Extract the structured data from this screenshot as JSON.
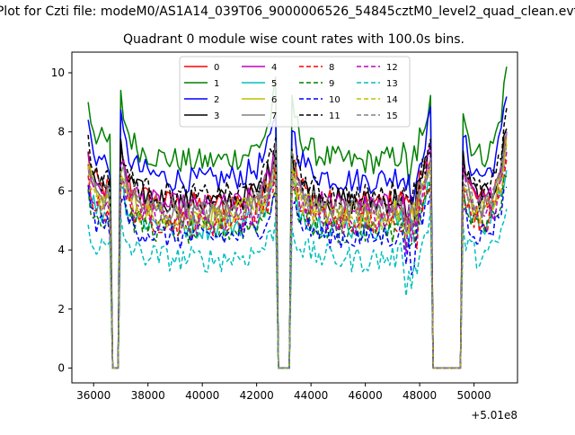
{
  "chart_data": {
    "type": "line",
    "suptitle": "Plot for Czti file: modeM0/AS1A14_039T06_9000006526_54845cztM0_level2_quad_clean.evt",
    "title": "Quadrant 0 module wise count rates with 100.0s bins.",
    "xlabel": "",
    "ylabel": "",
    "x_offset_label": "+5.01e8",
    "xlim": [
      35200,
      51600
    ],
    "ylim": [
      -0.5,
      10.7
    ],
    "xticks": [
      "36000",
      "38000",
      "40000",
      "42000",
      "44000",
      "46000",
      "48000",
      "50000"
    ],
    "yticks": [
      "0",
      "2",
      "4",
      "6",
      "8",
      "10"
    ],
    "legend_position": "upper-center",
    "series": [
      {
        "name": "0",
        "color": "#ff0000",
        "style": "solid",
        "level": 6.0
      },
      {
        "name": "1",
        "color": "#008000",
        "style": "solid",
        "level": 7.6
      },
      {
        "name": "2",
        "color": "#0000ff",
        "style": "solid",
        "level": 6.9
      },
      {
        "name": "3",
        "color": "#000000",
        "style": "solid",
        "level": 6.1
      },
      {
        "name": "4",
        "color": "#bf00bf",
        "style": "solid",
        "level": 5.9
      },
      {
        "name": "5",
        "color": "#00bfbf",
        "style": "solid",
        "level": 5.2
      },
      {
        "name": "6",
        "color": "#bfbf00",
        "style": "solid",
        "level": 5.6
      },
      {
        "name": "7",
        "color": "#808080",
        "style": "solid",
        "level": 5.7
      },
      {
        "name": "8",
        "color": "#ff0000",
        "style": "dashed",
        "level": 5.3
      },
      {
        "name": "9",
        "color": "#008000",
        "style": "dashed",
        "level": 5.0
      },
      {
        "name": "10",
        "color": "#0000ff",
        "style": "dashed",
        "level": 4.8
      },
      {
        "name": "11",
        "color": "#000000",
        "style": "dashed",
        "level": 6.3
      },
      {
        "name": "12",
        "color": "#bf00bf",
        "style": "dashed",
        "level": 5.4
      },
      {
        "name": "13",
        "color": "#00bfbf",
        "style": "dashed",
        "level": 4.0
      },
      {
        "name": "14",
        "color": "#bfbf00",
        "style": "dashed",
        "level": 5.5
      },
      {
        "name": "15",
        "color": "#808080",
        "style": "dashed",
        "level": 5.8
      }
    ],
    "x_start": 35800,
    "x_end": 51200,
    "bin": 100,
    "gaps": [
      [
        36700,
        36950
      ],
      [
        42800,
        43250
      ],
      [
        48500,
        49500
      ]
    ],
    "note": "Series values sampled every 100s; each series fluctuates around its level with SAA-like drop to 0 in the gap intervals."
  }
}
